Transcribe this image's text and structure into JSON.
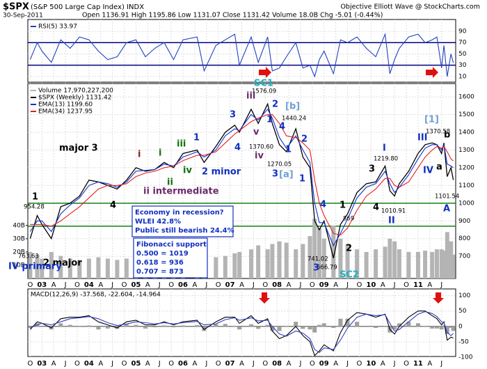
{
  "header": {
    "symbol": "$SPX",
    "name": "(S&P 500 Large Cap Index) INDX",
    "date": "30-Sep-2011",
    "quote": "Open 1136.91  High 1195.86  Low 1131.07  Close 1131.42  Volume 18.0B  Chg -5.01 (-0.44%)",
    "credit": "Objective Elliott Wave @ StockCharts.com"
  },
  "chart_data": [
    {
      "type": "line",
      "x": [
        2002.75,
        2002.9,
        2003.0,
        2003.2,
        2003.4,
        2003.6,
        2003.8,
        2004.0,
        2004.2,
        2004.4,
        2004.6,
        2004.8,
        2005.0,
        2005.2,
        2005.4,
        2005.6,
        2005.8,
        2006.0,
        2006.3,
        2006.45,
        2006.7,
        2006.9,
        2007.1,
        2007.2,
        2007.45,
        2007.6,
        2007.8,
        2007.9,
        2008.05,
        2008.2,
        2008.4,
        2008.55,
        2008.7,
        2008.8,
        2008.9,
        2009.0,
        2009.2,
        2009.35,
        2009.5,
        2009.7,
        2009.9,
        2010.1,
        2010.3,
        2010.4,
        2010.5,
        2010.6,
        2010.8,
        2011.0,
        2011.15,
        2011.3,
        2011.4,
        2011.5,
        2011.55,
        2011.62,
        2011.7,
        2011.75
      ],
      "series": [
        {
          "name": "RSI(5) 33.97",
          "color": "#2040c0",
          "values": [
            40,
            70,
            55,
            35,
            75,
            60,
            80,
            75,
            55,
            40,
            45,
            70,
            75,
            45,
            60,
            70,
            40,
            75,
            80,
            20,
            65,
            75,
            85,
            30,
            80,
            35,
            80,
            20,
            25,
            45,
            70,
            25,
            30,
            10,
            40,
            55,
            15,
            75,
            70,
            80,
            60,
            45,
            85,
            15,
            40,
            60,
            80,
            85,
            70,
            75,
            80,
            25,
            65,
            10,
            50,
            34
          ]
        }
      ],
      "xlim": [
        2002.7,
        2011.8
      ],
      "ylim": [
        0,
        111
      ],
      "yticks": [
        10,
        30,
        50,
        70,
        90
      ],
      "hlines": [
        {
          "value": 70,
          "color": "#000080"
        },
        {
          "value": 30,
          "color": "#000080"
        }
      ]
    },
    {
      "type": "line",
      "x": [
        2002.75,
        2002.9,
        2003.0,
        2003.2,
        2003.4,
        2003.6,
        2003.8,
        2004.0,
        2004.2,
        2004.4,
        2004.6,
        2004.8,
        2005.0,
        2005.2,
        2005.4,
        2005.6,
        2005.8,
        2006.0,
        2006.3,
        2006.45,
        2006.7,
        2006.9,
        2007.1,
        2007.2,
        2007.45,
        2007.6,
        2007.8,
        2007.9,
        2008.05,
        2008.2,
        2008.4,
        2008.55,
        2008.7,
        2008.8,
        2008.9,
        2009.0,
        2009.2,
        2009.35,
        2009.5,
        2009.7,
        2009.9,
        2010.1,
        2010.3,
        2010.4,
        2010.5,
        2010.6,
        2010.8,
        2011.0,
        2011.15,
        2011.3,
        2011.4,
        2011.5,
        2011.55,
        2011.62,
        2011.7,
        2011.75
      ],
      "series": [
        {
          "name": "Volume 17,970,227,200",
          "color": "#b4b4b4",
          "axis": "y2",
          "style": "bar",
          "values": [
            20,
            18,
            15,
            20,
            17,
            15,
            14,
            15,
            16,
            15,
            14,
            15,
            15,
            16,
            15,
            14,
            15,
            16,
            17,
            18,
            16,
            17,
            19,
            20,
            22,
            25,
            22,
            26,
            28,
            27,
            22,
            26,
            32,
            45,
            38,
            30,
            40,
            30,
            26,
            22,
            20,
            22,
            24,
            30,
            28,
            22,
            20,
            20,
            21,
            20,
            22,
            22,
            21,
            35,
            28,
            18
          ]
        },
        {
          "name": "$SPX (Weekly) 1131.42",
          "color": "#000000",
          "values": [
            800,
            930,
            880,
            800,
            980,
            1000,
            1040,
            1130,
            1120,
            1100,
            1080,
            1130,
            1200,
            1180,
            1190,
            1230,
            1200,
            1280,
            1300,
            1230,
            1320,
            1400,
            1440,
            1400,
            1530,
            1450,
            1560,
            1450,
            1330,
            1290,
            1420,
            1260,
            1200,
            900,
            850,
            900,
            690,
            880,
            940,
            1060,
            1110,
            1120,
            1210,
            1070,
            1040,
            1110,
            1180,
            1280,
            1330,
            1340,
            1330,
            1280,
            1340,
            1150,
            1200,
            1131
          ]
        },
        {
          "name": "EMA(13) 1199.60",
          "color": "#1030d0",
          "values": [
            840,
            900,
            900,
            840,
            940,
            990,
            1030,
            1100,
            1120,
            1110,
            1090,
            1120,
            1180,
            1185,
            1190,
            1220,
            1210,
            1260,
            1290,
            1260,
            1300,
            1380,
            1420,
            1410,
            1500,
            1470,
            1530,
            1480,
            1370,
            1310,
            1380,
            1300,
            1230,
            1000,
            890,
            890,
            760,
            830,
            910,
            1030,
            1090,
            1110,
            1180,
            1110,
            1060,
            1090,
            1160,
            1250,
            1310,
            1330,
            1330,
            1300,
            1330,
            1220,
            1210,
            1200
          ]
        },
        {
          "name": "EMA(34) 1237.95",
          "color": "#e02020",
          "values": [
            880,
            880,
            880,
            870,
            900,
            940,
            980,
            1030,
            1080,
            1100,
            1100,
            1110,
            1150,
            1170,
            1180,
            1200,
            1210,
            1240,
            1270,
            1270,
            1290,
            1340,
            1390,
            1410,
            1460,
            1480,
            1500,
            1500,
            1450,
            1380,
            1370,
            1340,
            1300,
            1130,
            1000,
            930,
            830,
            820,
            860,
            960,
            1040,
            1080,
            1140,
            1140,
            1100,
            1090,
            1120,
            1200,
            1260,
            1300,
            1320,
            1310,
            1320,
            1290,
            1250,
            1238
          ]
        }
      ],
      "xlim": [
        2002.7,
        2011.8
      ],
      "ylim": [
        575,
        1675
      ],
      "yticks": [
        700,
        800,
        900,
        1000,
        1100,
        1200,
        1300,
        1400,
        1500,
        1600
      ],
      "y2lim": [
        0,
        147
      ],
      "y2ticks": [
        {
          "value": 10,
          "label": "10B"
        },
        {
          "value": 20,
          "label": "20B"
        },
        {
          "value": 30,
          "label": "30B"
        },
        {
          "value": 40,
          "label": "40B"
        }
      ],
      "xticks": [
        {
          "value": 2002.75,
          "label": "O"
        },
        {
          "value": 2003.0,
          "label": "03"
        },
        {
          "value": 2003.25,
          "label": "A"
        },
        {
          "value": 2003.5,
          "label": "J"
        },
        {
          "value": 2003.75,
          "label": "O"
        },
        {
          "value": 2004.0,
          "label": "04"
        },
        {
          "value": 2004.25,
          "label": "A"
        },
        {
          "value": 2004.5,
          "label": "J"
        },
        {
          "value": 2004.75,
          "label": "O"
        },
        {
          "value": 2005.0,
          "label": "05"
        },
        {
          "value": 2005.25,
          "label": "A"
        },
        {
          "value": 2005.5,
          "label": "J"
        },
        {
          "value": 2005.75,
          "label": "O"
        },
        {
          "value": 2006.0,
          "label": "06"
        },
        {
          "value": 2006.25,
          "label": "A"
        },
        {
          "value": 2006.5,
          "label": "J"
        },
        {
          "value": 2006.75,
          "label": "O"
        },
        {
          "value": 2007.0,
          "label": "07"
        },
        {
          "value": 2007.25,
          "label": "A"
        },
        {
          "value": 2007.5,
          "label": "J"
        },
        {
          "value": 2007.75,
          "label": "O"
        },
        {
          "value": 2008.0,
          "label": "08"
        },
        {
          "value": 2008.25,
          "label": "A"
        },
        {
          "value": 2008.5,
          "label": "J"
        },
        {
          "value": 2008.75,
          "label": "O"
        },
        {
          "value": 2009.0,
          "label": "09"
        },
        {
          "value": 2009.25,
          "label": "A"
        },
        {
          "value": 2009.5,
          "label": "J"
        },
        {
          "value": 2009.75,
          "label": "O"
        },
        {
          "value": 2010.0,
          "label": "10"
        },
        {
          "value": 2010.25,
          "label": "A"
        },
        {
          "value": 2010.5,
          "label": "J"
        },
        {
          "value": 2010.75,
          "label": "O"
        },
        {
          "value": 2011.0,
          "label": "11"
        },
        {
          "value": 2011.25,
          "label": "A"
        },
        {
          "value": 2011.5,
          "label": "J"
        }
      ],
      "hlines": [
        {
          "value": 1000,
          "color": "#108010"
        },
        {
          "value": 870,
          "color": "#108010"
        }
      ],
      "annotations": [
        "1",
        "954.28",
        "763.63",
        "2 major",
        "IV primary",
        "major 3",
        "4",
        "i",
        "i",
        "iii",
        "1",
        "ii",
        "iv",
        "ii intermediate",
        "2 minor",
        "3",
        "4",
        "iii",
        "1576.09",
        "v",
        "iv",
        "1370.60",
        "SC1",
        "2",
        "1",
        "[b]",
        "1440.24",
        "4",
        "2",
        "1",
        "1270.05",
        "3",
        "[a]",
        "1",
        "4",
        "741.02",
        "666.79",
        "3",
        "SC2",
        "1",
        "869",
        "2",
        "3",
        "4",
        "I",
        "1219.80",
        "1010.91",
        "II",
        "[1]",
        "III",
        "1370.58",
        "b",
        "IV",
        "a",
        "1101.54",
        "A"
      ],
      "notes_box": [
        "Economy in recession?",
        "WLEI 42.8%",
        "Public still bearish 24.4%"
      ],
      "fib_box": [
        "Fibonacci support",
        "0.500 = 1019",
        "0.618 = 936",
        "0.707 = 873"
      ]
    },
    {
      "type": "line",
      "title": "MACD(12,26,9) -37.568, -22.604, -14.964",
      "x": [
        2002.75,
        2002.9,
        2003.0,
        2003.2,
        2003.4,
        2003.6,
        2003.8,
        2004.0,
        2004.2,
        2004.4,
        2004.6,
        2004.8,
        2005.0,
        2005.2,
        2005.4,
        2005.6,
        2005.8,
        2006.0,
        2006.3,
        2006.45,
        2006.7,
        2006.9,
        2007.1,
        2007.2,
        2007.45,
        2007.6,
        2007.8,
        2007.9,
        2008.05,
        2008.2,
        2008.4,
        2008.55,
        2008.7,
        2008.8,
        2008.9,
        2009.0,
        2009.2,
        2009.35,
        2009.5,
        2009.7,
        2009.9,
        2010.1,
        2010.3,
        2010.4,
        2010.5,
        2010.6,
        2010.8,
        2011.0,
        2011.15,
        2011.3,
        2011.4,
        2011.5,
        2011.55,
        2011.62,
        2011.7,
        2011.75
      ],
      "series": [
        {
          "color": "#a0a0a0",
          "style": "bar",
          "values": [
            -5,
            10,
            0,
            -10,
            10,
            5,
            2,
            3,
            -10,
            -7,
            -8,
            7,
            5,
            -7,
            -3,
            3,
            -3,
            3,
            4,
            -15,
            7,
            8,
            2,
            -10,
            7,
            -8,
            5,
            -15,
            -15,
            2,
            15,
            -8,
            -10,
            -20,
            5,
            10,
            -5,
            25,
            25,
            15,
            0,
            -5,
            2,
            -20,
            -10,
            10,
            15,
            10,
            2,
            -7,
            -7,
            -10,
            3,
            -25,
            -5,
            -15
          ]
        },
        {
          "color": "#000000",
          "values": [
            -10,
            15,
            10,
            -5,
            25,
            30,
            30,
            35,
            15,
            5,
            -5,
            15,
            20,
            5,
            5,
            15,
            5,
            15,
            20,
            -10,
            15,
            30,
            30,
            10,
            35,
            10,
            25,
            -15,
            -40,
            -30,
            0,
            -30,
            -50,
            -95,
            -80,
            -60,
            -80,
            -20,
            20,
            45,
            40,
            30,
            40,
            -10,
            -25,
            0,
            30,
            50,
            50,
            35,
            25,
            5,
            15,
            -45,
            -35,
            -38
          ]
        },
        {
          "color": "#3040c0",
          "values": [
            -5,
            5,
            10,
            5,
            15,
            25,
            28,
            32,
            25,
            12,
            3,
            8,
            15,
            12,
            8,
            12,
            8,
            12,
            16,
            5,
            8,
            22,
            28,
            20,
            28,
            18,
            20,
            0,
            -25,
            -32,
            -15,
            -22,
            -40,
            -75,
            -85,
            -70,
            -75,
            -45,
            -5,
            30,
            40,
            35,
            38,
            10,
            -15,
            -10,
            15,
            40,
            48,
            42,
            32,
            15,
            12,
            -20,
            -30,
            -23
          ]
        }
      ],
      "xlim": [
        2002.7,
        2011.8
      ],
      "ylim": [
        -98,
        122
      ],
      "yticks": [
        -100,
        -50,
        0,
        50,
        100
      ],
      "xticks": [
        {
          "value": 2002.75,
          "label": "O"
        },
        {
          "value": 2003.0,
          "label": "03"
        },
        {
          "value": 2003.25,
          "label": "A"
        },
        {
          "value": 2003.5,
          "label": "J"
        },
        {
          "value": 2003.75,
          "label": "O"
        },
        {
          "value": 2004.0,
          "label": "04"
        },
        {
          "value": 2004.25,
          "label": "A"
        },
        {
          "value": 2004.5,
          "label": "J"
        },
        {
          "value": 2004.75,
          "label": "O"
        },
        {
          "value": 2005.0,
          "label": "05"
        },
        {
          "value": 2005.25,
          "label": "A"
        },
        {
          "value": 2005.5,
          "label": "J"
        },
        {
          "value": 2005.75,
          "label": "O"
        },
        {
          "value": 2006.0,
          "label": "06"
        },
        {
          "value": 2006.25,
          "label": "A"
        },
        {
          "value": 2006.5,
          "label": "J"
        },
        {
          "value": 2006.75,
          "label": "O"
        },
        {
          "value": 2007.0,
          "label": "07"
        },
        {
          "value": 2007.25,
          "label": "A"
        },
        {
          "value": 2007.5,
          "label": "J"
        },
        {
          "value": 2007.75,
          "label": "O"
        },
        {
          "value": 2008.0,
          "label": "08"
        },
        {
          "value": 2008.25,
          "label": "A"
        },
        {
          "value": 2008.5,
          "label": "J"
        },
        {
          "value": 2008.75,
          "label": "O"
        },
        {
          "value": 2009.0,
          "label": "09"
        },
        {
          "value": 2009.25,
          "label": "A"
        },
        {
          "value": 2009.5,
          "label": "J"
        },
        {
          "value": 2009.75,
          "label": "O"
        },
        {
          "value": 2010.0,
          "label": "10"
        },
        {
          "value": 2010.25,
          "label": "A"
        },
        {
          "value": 2010.5,
          "label": "J"
        },
        {
          "value": 2010.75,
          "label": "O"
        },
        {
          "value": 2011.0,
          "label": "11"
        },
        {
          "value": 2011.25,
          "label": "A"
        },
        {
          "value": 2011.5,
          "label": "J"
        }
      ],
      "hlines": [
        {
          "value": 0,
          "color": "#808080"
        }
      ]
    }
  ]
}
